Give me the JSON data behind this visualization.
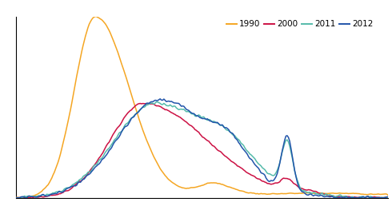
{
  "legend_labels": [
    "1990",
    "2000",
    "2011",
    "2012"
  ],
  "colors": {
    "1990": "#F5A623",
    "2000": "#CC1144",
    "2011": "#55BBAA",
    "2012": "#2255AA"
  },
  "line_width": 1.1,
  "background_color": "#ffffff",
  "grid_color": "#888888",
  "n_gridlines": 5,
  "border_color": "#000000",
  "xlim": [
    0,
    99
  ],
  "ylim_max": 1.0
}
